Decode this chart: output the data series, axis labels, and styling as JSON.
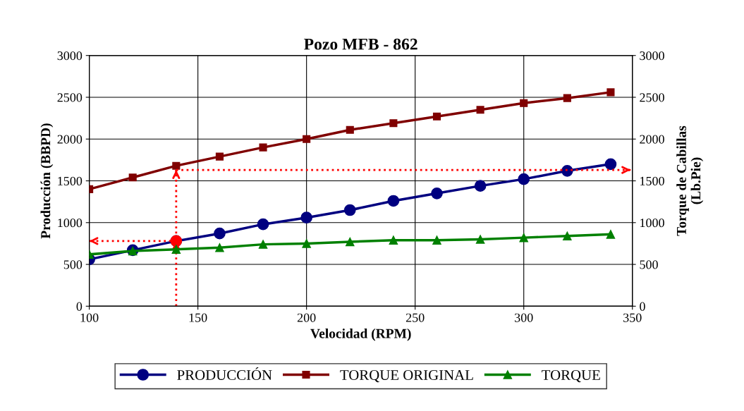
{
  "chart_data": {
    "type": "line",
    "title": "Pozo MFB - 862",
    "xlabel": "Velocidad (RPM)",
    "ylabel": "Producción (BBPD)",
    "y2label": "Torque de Cabillas\n(Lb.Pie)",
    "x": [
      100,
      120,
      140,
      160,
      180,
      200,
      220,
      240,
      260,
      280,
      300,
      320,
      340
    ],
    "series": [
      {
        "name": "PRODUCCIÓN",
        "color": "#000080",
        "marker": "circle",
        "values": [
          560,
          670,
          780,
          870,
          980,
          1060,
          1150,
          1260,
          1350,
          1440,
          1520,
          1620,
          1700
        ]
      },
      {
        "name": "TORQUE ORIGINAL",
        "color": "#800000",
        "marker": "square",
        "axis": "y2",
        "values": [
          1400,
          1540,
          1680,
          1790,
          1900,
          2000,
          2110,
          2190,
          2270,
          2350,
          2430,
          2490,
          2560
        ]
      },
      {
        "name": "TORQUE",
        "color": "#008000",
        "marker": "triangle",
        "axis": "y2",
        "values": [
          620,
          660,
          680,
          700,
          740,
          750,
          770,
          790,
          790,
          800,
          820,
          840,
          860
        ]
      },
      {
        "type": "scatter",
        "color": "#ff0000",
        "marker": "circle",
        "x": [
          140
        ],
        "values": [
          780
        ]
      }
    ],
    "ref_lines": [
      {
        "axis": "x",
        "value": 140,
        "color": "#ff0000",
        "line_style": "dotted"
      },
      {
        "axis": "y",
        "value": 780,
        "color": "#ff0000",
        "line_style": "dotted"
      },
      {
        "axis": "y2",
        "value": 1630,
        "color": "#ff0000",
        "line_style": "dotted"
      }
    ],
    "xlim": [
      100,
      350
    ],
    "xticks": [
      100,
      150,
      200,
      250,
      300,
      350
    ],
    "ylim": [
      0,
      3000
    ],
    "yticks": [
      0,
      500,
      1000,
      1500,
      2000,
      2500,
      3000
    ],
    "y2lim": [
      0,
      3000
    ],
    "y2ticks": [
      0,
      500,
      1000,
      1500,
      2000,
      2500,
      3000
    ],
    "grid": true,
    "legend": "bottom"
  }
}
